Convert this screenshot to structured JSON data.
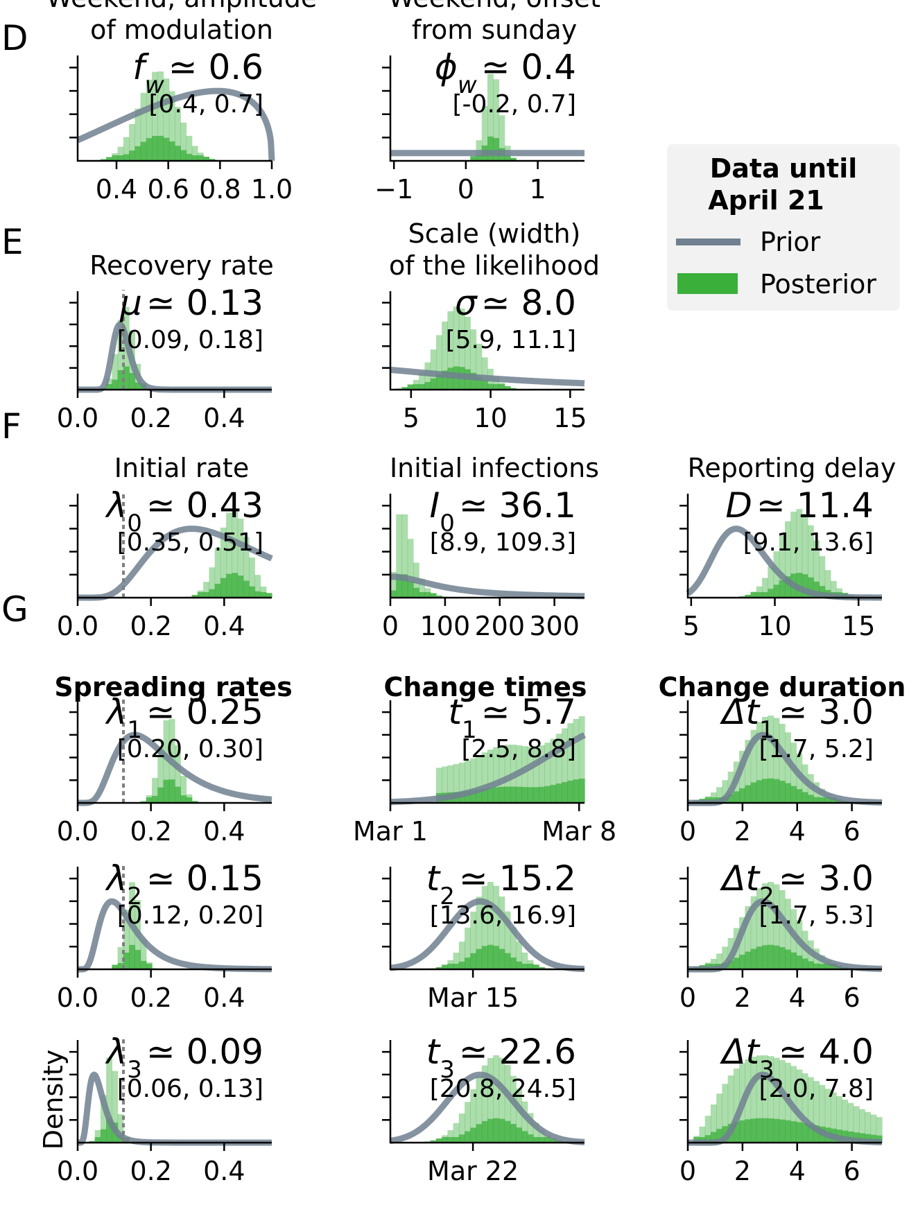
{
  "colors": {
    "posterior": "#3aaf3a",
    "prior": "#708090",
    "reference": "#808080",
    "legend_bg": "#f2f2f2"
  },
  "section_letters": [
    "D",
    "E",
    "F",
    "G"
  ],
  "legend": {
    "title_lines": [
      "Data until",
      "April 21"
    ],
    "prior_label": "Prior",
    "posterior_label": "Posterior"
  },
  "ylabel": "Density",
  "column_titles": {
    "spreading": "Spreading rates",
    "change_times": "Change times",
    "change_duration": "Change duration"
  },
  "chart_data": [
    {
      "id": "weekend-amplitude",
      "type": "histogram",
      "title_lines": [
        "Weekend, amplitude",
        "of modulation"
      ],
      "symbol": "f",
      "subscript": "w",
      "estimate": "0.6",
      "ci": "[0.4, 0.7]",
      "xlim": [
        0.25,
        1.0
      ],
      "xticks": [
        0.4,
        0.6,
        0.8,
        1.0
      ],
      "xticklabels": [
        "0.4",
        "0.6",
        "0.8",
        "1.0"
      ],
      "posterior": {
        "mean": 0.56,
        "sd": 0.075
      },
      "prior": {
        "kind": "beta",
        "alpha": 2.5,
        "beta": 1.4
      }
    },
    {
      "id": "weekend-offset",
      "type": "histogram",
      "title_lines": [
        "Weekend, offset",
        "from sunday"
      ],
      "symbol": "ϕ",
      "subscript": "w",
      "estimate": "0.4",
      "ci": "[-0.2, 0.7]",
      "xlim": [
        -1.05,
        1.65
      ],
      "xticks": [
        -1,
        0,
        1
      ],
      "xticklabels": [
        "−1",
        "0",
        "1"
      ],
      "posterior": {
        "mean": 0.37,
        "sd": 0.11
      },
      "prior": {
        "kind": "flat"
      }
    },
    {
      "id": "recovery-rate",
      "type": "histogram",
      "title_lines": [
        "Recovery rate"
      ],
      "symbol": "μ",
      "subscript": "",
      "estimate": "0.13",
      "ci": "[0.09, 0.18]",
      "xlim": [
        0.0,
        0.53
      ],
      "xticks": [
        0.0,
        0.2,
        0.4
      ],
      "xticklabels": [
        "0.0",
        "0.2",
        "0.4"
      ],
      "posterior": {
        "mean": 0.13,
        "sd": 0.022
      },
      "prior": {
        "kind": "lognormal",
        "median": 0.12,
        "sigma": 0.2
      },
      "reference_line": 0.125
    },
    {
      "id": "likelihood-scale",
      "type": "histogram",
      "title_lines": [
        "Scale (width)",
        "of the likelihood"
      ],
      "symbol": "σ",
      "subscript": "",
      "estimate": "8.0",
      "ci": "[5.9, 11.1]",
      "xlim": [
        3.7,
        15.9
      ],
      "xticks": [
        5,
        10,
        15
      ],
      "xticklabels": [
        "5",
        "10",
        "15"
      ],
      "posterior": {
        "mean": 7.9,
        "sd": 1.25
      },
      "prior": {
        "kind": "halfcauchy",
        "scale": 10
      }
    },
    {
      "id": "initial-rate",
      "type": "histogram",
      "title_lines": [
        "Initial rate"
      ],
      "symbol": "λ",
      "subscript": "0",
      "estimate": "0.43",
      "ci": "[0.35, 0.51]",
      "xlim": [
        0.0,
        0.53
      ],
      "xticks": [
        0.0,
        0.2,
        0.4
      ],
      "xticklabels": [
        "0.0",
        "0.2",
        "0.4"
      ],
      "posterior": {
        "mean": 0.425,
        "sd": 0.04
      },
      "prior": {
        "kind": "lognormal",
        "median": 0.4,
        "sigma": 0.5
      },
      "reference_line": 0.125
    },
    {
      "id": "initial-infections",
      "type": "histogram",
      "title_lines": [
        "Initial infections"
      ],
      "symbol": "I",
      "subscript": "0",
      "estimate": "36.1",
      "ci": "[8.9, 109.3]",
      "xlim": [
        0,
        355
      ],
      "xticks": [
        0,
        100,
        200,
        300
      ],
      "xticklabels": [
        "0",
        "100",
        "200",
        "300"
      ],
      "posterior": {
        "kind": "skewed",
        "mode": 22,
        "scale": 24
      },
      "prior": {
        "kind": "halfcauchy",
        "scale": 100
      }
    },
    {
      "id": "reporting-delay",
      "type": "histogram",
      "title_lines": [
        "Reporting delay"
      ],
      "symbol": "D",
      "subscript": "",
      "estimate": "11.4",
      "ci": "[9.1, 13.6]",
      "xlim": [
        4.8,
        16.4
      ],
      "xticks": [
        5,
        10,
        15
      ],
      "xticklabels": [
        "5",
        "10",
        "15"
      ],
      "posterior": {
        "mean": 11.4,
        "sd": 1.15
      },
      "prior": {
        "kind": "lognormal",
        "median": 8,
        "sigma": 0.2
      }
    },
    {
      "id": "spreading-rate-1",
      "type": "histogram",
      "symbol": "λ",
      "subscript": "1",
      "estimate": "0.25",
      "ci": "[0.20, 0.30]",
      "xlim": [
        0.0,
        0.53
      ],
      "xticks": [
        0.0,
        0.2,
        0.4
      ],
      "xticklabels": [
        "0.0",
        "0.2",
        "0.4"
      ],
      "posterior": {
        "mean": 0.25,
        "sd": 0.025
      },
      "prior": {
        "kind": "lognormal",
        "median": 0.2,
        "sigma": 0.5
      },
      "reference_line": 0.125
    },
    {
      "id": "change-time-1",
      "type": "histogram",
      "symbol": "t",
      "subscript": "1",
      "estimate": "5.7",
      "ci": "[2.5, 8.8]",
      "xlim": [
        0,
        7.2
      ],
      "xticks": [
        0,
        7
      ],
      "xticklabels": [
        "Mar 1",
        "Mar 8"
      ],
      "posterior": {
        "kind": "rising",
        "from": 1.8,
        "to": 7.2
      },
      "prior": {
        "kind": "normal",
        "mean": 9.0,
        "sd": 3.0
      }
    },
    {
      "id": "change-duration-1",
      "type": "histogram",
      "symbol": "Δt",
      "subscript": "1",
      "estimate": "3.0",
      "ci": "[1.7, 5.2]",
      "xlim": [
        0,
        7.1
      ],
      "xticks": [
        0,
        2,
        4,
        6
      ],
      "xticklabels": [
        "0",
        "2",
        "4",
        "6"
      ],
      "posterior": {
        "mean": 3.0,
        "sd": 1.0
      },
      "prior": {
        "kind": "lognormal",
        "median": 3,
        "sigma": 0.3
      }
    },
    {
      "id": "spreading-rate-2",
      "type": "histogram",
      "symbol": "λ",
      "subscript": "2",
      "estimate": "0.15",
      "ci": "[0.12, 0.20]",
      "xlim": [
        0.0,
        0.53
      ],
      "xticks": [
        0.0,
        0.2,
        0.4
      ],
      "xticklabels": [
        "0.0",
        "0.2",
        "0.4"
      ],
      "posterior": {
        "mean": 0.15,
        "sd": 0.02
      },
      "prior": {
        "kind": "lognormal",
        "median": 0.12,
        "sigma": 0.5
      },
      "reference_line": 0.125
    },
    {
      "id": "change-time-2",
      "type": "histogram",
      "symbol": "t",
      "subscript": "2",
      "estimate": "15.2",
      "ci": "[13.6, 16.9]",
      "xlim": [
        8.3,
        21.7
      ],
      "xticks": [
        14
      ],
      "xticklabels": [
        "Mar 15"
      ],
      "posterior": {
        "mean": 15.2,
        "sd": 1.3
      },
      "prior": {
        "kind": "normal",
        "mean": 14.5,
        "sd": 2.2
      }
    },
    {
      "id": "change-duration-2",
      "type": "histogram",
      "symbol": "Δt",
      "subscript": "2",
      "estimate": "3.0",
      "ci": "[1.7, 5.3]",
      "xlim": [
        0,
        7.1
      ],
      "xticks": [
        0,
        2,
        4,
        6
      ],
      "xticklabels": [
        "0",
        "2",
        "4",
        "6"
      ],
      "posterior": {
        "mean": 3.0,
        "sd": 1.0
      },
      "prior": {
        "kind": "lognormal",
        "median": 3,
        "sigma": 0.3
      }
    },
    {
      "id": "spreading-rate-3",
      "type": "histogram",
      "symbol": "λ",
      "subscript": "3",
      "estimate": "0.09",
      "ci": "[0.06, 0.13]",
      "xlim": [
        0.0,
        0.53
      ],
      "xticks": [
        0.0,
        0.2,
        0.4
      ],
      "xticklabels": [
        "0.0",
        "0.2",
        "0.4"
      ],
      "posterior": {
        "mean": 0.09,
        "sd": 0.018
      },
      "prior": {
        "kind": "lognormal",
        "median": 0.055,
        "sigma": 0.45
      },
      "reference_line": 0.125
    },
    {
      "id": "change-time-3",
      "type": "histogram",
      "symbol": "t",
      "subscript": "3",
      "estimate": "22.6",
      "ci": "[20.8, 24.5]",
      "xlim": [
        15.3,
        28.7
      ],
      "xticks": [
        21
      ],
      "xticklabels": [
        "Mar 22"
      ],
      "posterior": {
        "mean": 22.6,
        "sd": 1.6
      },
      "prior": {
        "kind": "normal",
        "mean": 21.5,
        "sd": 2.3
      }
    },
    {
      "id": "change-duration-3",
      "type": "histogram",
      "symbol": "Δt",
      "subscript": "3",
      "estimate": "4.0",
      "ci": "[2.0, 7.8]",
      "xlim": [
        0,
        7.1
      ],
      "xticks": [
        0,
        2,
        4,
        6
      ],
      "xticklabels": [
        "0",
        "2",
        "4",
        "6"
      ],
      "posterior": {
        "kind": "skewed",
        "mode": 3.2,
        "scale": 1.6
      },
      "prior": {
        "kind": "lognormal",
        "median": 3,
        "sigma": 0.3
      }
    }
  ]
}
